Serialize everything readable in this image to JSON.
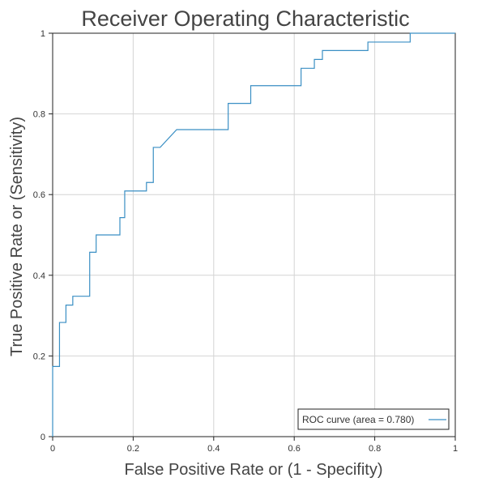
{
  "chart_data": {
    "type": "line",
    "title": "Receiver Operating Characteristic",
    "xlabel": "False Positive Rate or (1 - Specifity)",
    "ylabel": "True Positive Rate or (Sensitivity)",
    "xlim": [
      0,
      1
    ],
    "ylim": [
      0,
      1
    ],
    "x_ticks": [
      0,
      0.2,
      0.4,
      0.6,
      0.8,
      1
    ],
    "y_ticks": [
      0,
      0.2,
      0.4,
      0.6,
      0.8,
      1
    ],
    "x_tick_labels": [
      "0",
      "0.2",
      "0.4",
      "0.6",
      "0.8",
      "1"
    ],
    "y_tick_labels": [
      "0",
      "0.2",
      "0.4",
      "0.6",
      "0.8",
      "1"
    ],
    "grid": true,
    "legend_position": "bottom-right",
    "series": [
      {
        "name": "ROC curve (area = 0.780)",
        "color": "#3a8fc4",
        "x": [
          0,
          0,
          0.017,
          0.017,
          0.033,
          0.033,
          0.05,
          0.05,
          0.067,
          0.067,
          0.083,
          0.083,
          0.092,
          0.092,
          0.108,
          0.108,
          0.167,
          0.167,
          0.179,
          0.179,
          0.233,
          0.233,
          0.25,
          0.25,
          0.267,
          0.308,
          0.436,
          0.436,
          0.492,
          0.492,
          0.554,
          0.554,
          0.617,
          0.617,
          0.65,
          0.65,
          0.67,
          0.67,
          0.783,
          0.783,
          0.888,
          0.888,
          1
        ],
        "y": [
          0,
          0.174,
          0.174,
          0.283,
          0.283,
          0.326,
          0.326,
          0.348,
          0.348,
          0.348,
          0.348,
          0.348,
          0.348,
          0.457,
          0.457,
          0.5,
          0.5,
          0.543,
          0.543,
          0.609,
          0.609,
          0.63,
          0.63,
          0.717,
          0.717,
          0.761,
          0.761,
          0.826,
          0.826,
          0.87,
          0.87,
          0.87,
          0.87,
          0.913,
          0.913,
          0.935,
          0.935,
          0.957,
          0.957,
          0.978,
          0.978,
          1,
          1
        ]
      }
    ]
  }
}
